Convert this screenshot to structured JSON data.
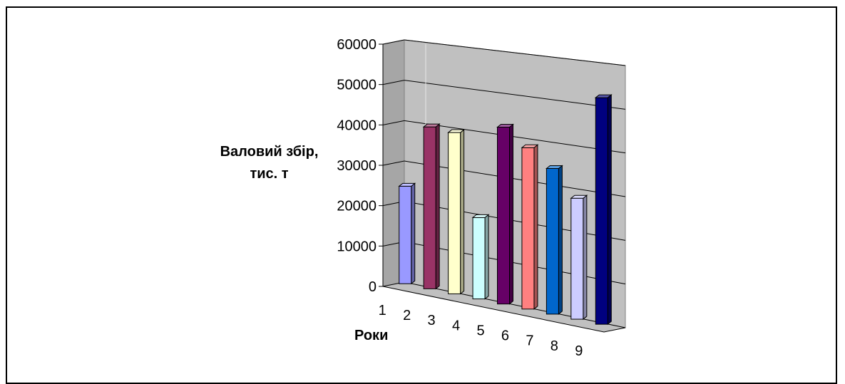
{
  "chart_data": {
    "type": "bar",
    "categories": [
      "1",
      "2",
      "3",
      "4",
      "5",
      "6",
      "7",
      "8",
      "9"
    ],
    "values": [
      24000,
      39500,
      39000,
      19500,
      42000,
      38000,
      34000,
      28000,
      52000
    ],
    "title": "",
    "xlabel": "Роки",
    "ylabel_lines": [
      "Валовий збір,",
      "тис. т"
    ],
    "ylim": [
      0,
      60000
    ],
    "yticks": [
      "0",
      "10000",
      "20000",
      "30000",
      "40000",
      "50000",
      "60000"
    ],
    "grid": true,
    "legend": "none",
    "colors": [
      "#9999ff",
      "#993366",
      "#ffffcc",
      "#ccffff",
      "#660066",
      "#ff8080",
      "#0066cc",
      "#ccccff",
      "#000080"
    ]
  }
}
